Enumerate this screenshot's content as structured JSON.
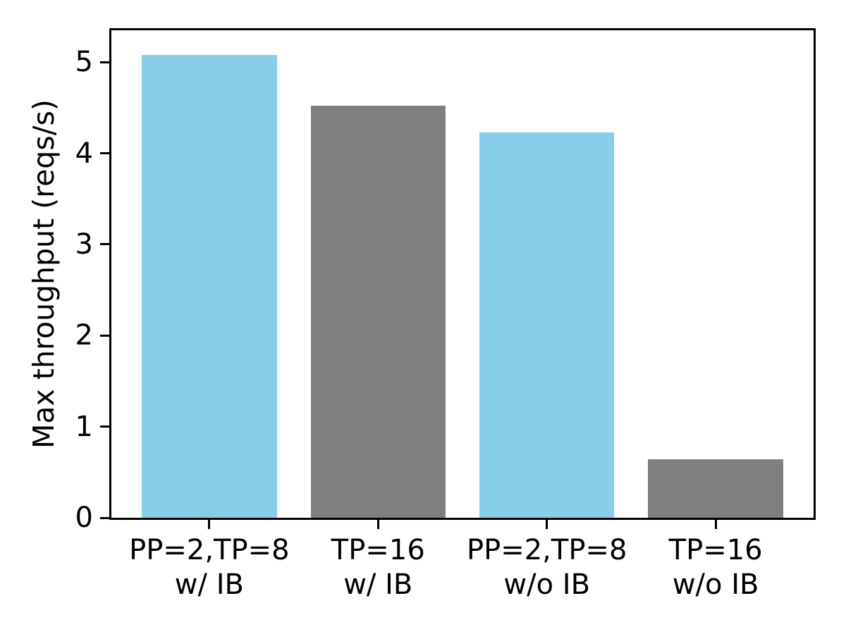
{
  "chart_data": {
    "type": "bar",
    "categories": [
      "PP=2,TP=8\nw/ IB",
      "TP=16\nw/ IB",
      "PP=2,TP=8\nw/o IB",
      "TP=16\nw/o IB"
    ],
    "values": [
      5.08,
      4.52,
      4.23,
      0.64
    ],
    "bar_colors": [
      "#87CEEB",
      "#7F7F7F",
      "#87CEEB",
      "#7F7F7F"
    ],
    "title": "",
    "xlabel": "",
    "ylabel": "Max throughput (reqs/s)",
    "ylim": [
      0,
      5.35
    ],
    "yticks": [
      0,
      1,
      2,
      3,
      4,
      5
    ],
    "bar_width_fraction": 0.8,
    "x_range": [
      -0.58,
      3.58
    ],
    "grid": false,
    "legend_position": "none"
  },
  "colors": {
    "skyblue": "#87CEEB",
    "gray": "#7F7F7F",
    "axis": "#000000",
    "background": "#FFFFFF"
  }
}
